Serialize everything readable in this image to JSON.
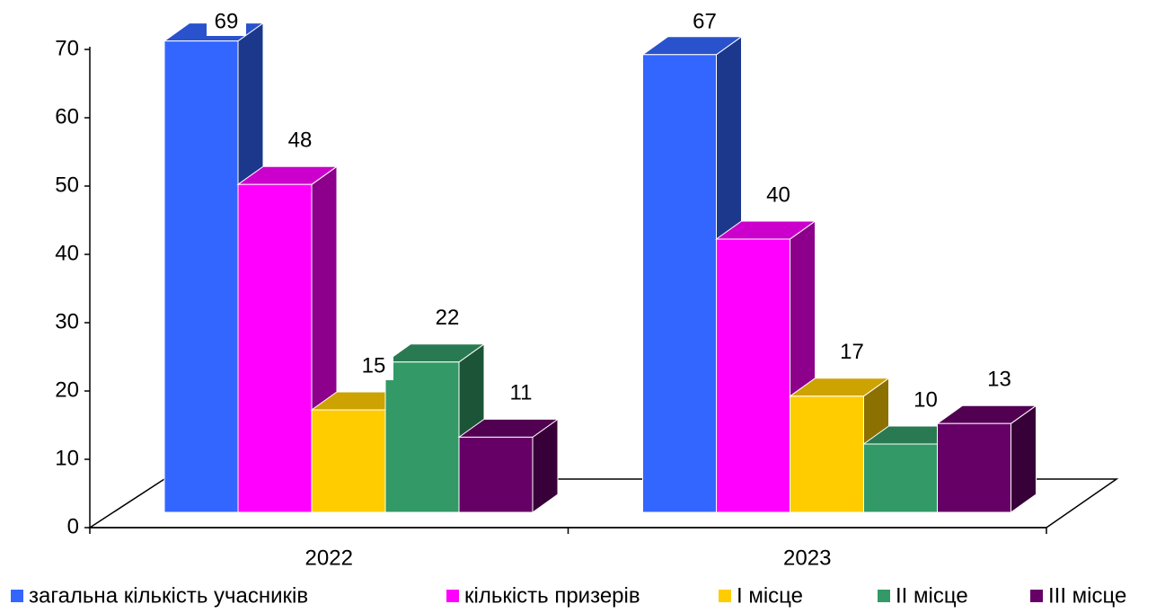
{
  "chart_data": {
    "type": "bar3d",
    "categories": [
      "2022",
      "2023"
    ],
    "series": [
      {
        "name": "загальна кількість учасників",
        "color": "#3366ff",
        "values": [
          69,
          67
        ]
      },
      {
        "name": "кількість призерів",
        "color": "#ff00ff",
        "values": [
          48,
          40
        ]
      },
      {
        "name": "I місце",
        "color": "#ffcc00",
        "values": [
          15,
          17
        ]
      },
      {
        "name": "II місце",
        "color": "#339966",
        "values": [
          22,
          10
        ]
      },
      {
        "name": "III місце",
        "color": "#660066",
        "values": [
          11,
          13
        ]
      }
    ],
    "ylim": [
      0,
      70
    ],
    "yticks": [
      0,
      10,
      20,
      30,
      40,
      50,
      60,
      70
    ],
    "grid": false,
    "legend": "bottom"
  }
}
